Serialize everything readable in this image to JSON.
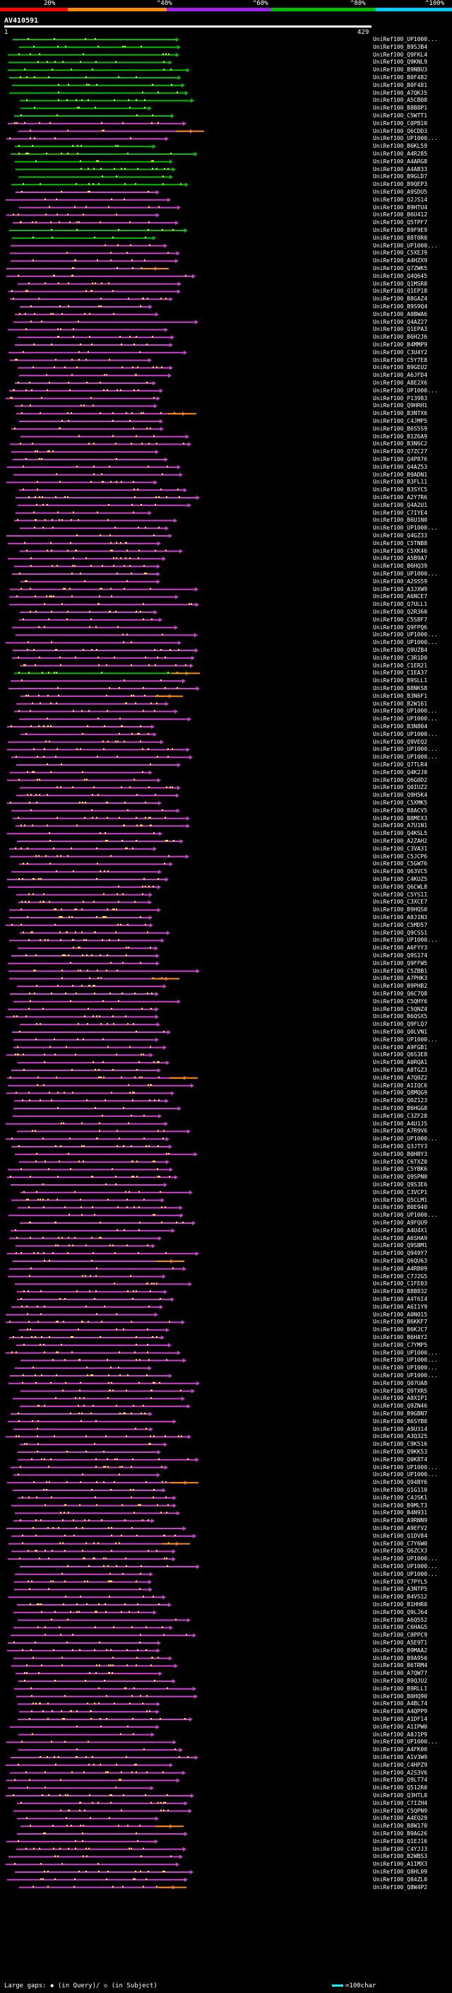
{
  "legend": {
    "labels": [
      "20%",
      "^40%",
      "^60%",
      "^80%",
      "^100%"
    ],
    "colors": [
      "#ff0000",
      "#ff8c00",
      "#a020f0",
      "#00c000",
      "#00d0ff"
    ]
  },
  "query": {
    "name": "AV410591",
    "start": "1",
    "end": "429"
  },
  "hit_colors": {
    "main": "#d040d0",
    "green": "#00c000",
    "orange": "#ff8c00",
    "cyan": "#00ffff",
    "dots": "#ffff00"
  },
  "hits": [
    "UniRef100_UP1000...",
    "UniRef100_B9SJB4",
    "UniRef100_Q9FKL4",
    "UniRef100_Q9KNL9",
    "UniRef100_B9NBU3",
    "UniRef100_B0F482",
    "UniRef100_B0F481",
    "UniRef100_A7QKJ5",
    "UniRef100_A5CB08",
    "UniRef100_B8B8P1",
    "UniRef100_C5WTT1",
    "UniRef100_C0PB10",
    "UniRef100_Q6CDD3",
    "UniRef100_UP1000...",
    "UniRef100_B6KL59",
    "UniRef100_A4R285",
    "UniRef100_A4ARG8",
    "UniRef100_A4AB33",
    "UniRef100_B9GLD7",
    "UniRef100_B9QEP3",
    "UniRef100_A9SDU5",
    "UniRef100_Q2JS14",
    "UniRef100_B9HTU4",
    "UniRef100_B6U412",
    "UniRef100_Q5TPF7",
    "UniRef100_B9F9E9",
    "UniRef100_B8T0R0",
    "UniRef100_UP1000...",
    "UniRef100_C5XEJ9",
    "UniRef100_A4HZX9",
    "UniRef100_Q7ZWK5",
    "UniRef100_Q4Q645",
    "UniRef100_Q1MSR8",
    "UniRef100_Q1EP18",
    "UniRef100_B8GAZ4",
    "UniRef100_B9S9Q4",
    "UniRef100_A0BWA6",
    "UniRef100_Q4AZ27",
    "UniRef100_Q1EPA3",
    "UniRef100_B6H2J6",
    "UniRef100_B4MMP9",
    "UniRef100_C3U4Y2",
    "UniRef100_C5Y7E8",
    "UniRef100_B9GEU2",
    "UniRef100_A6JFD4",
    "UniRef100_A8E2X6",
    "UniRef100_UP1000...",
    "UniRef100_P13983",
    "UniRef100_Q9HRH1",
    "UniRef100_B3NTX6",
    "UniRef100_C4JMP5",
    "UniRef100_B6S5S9",
    "UniRef100_B1Z6A9",
    "UniRef100_B3N6C2",
    "UniRef100_Q7ZC27",
    "UniRef100_Q4P876",
    "UniRef100_Q4AZ53",
    "UniRef100_B9ADN1",
    "UniRef100_B3FL11",
    "UniRef100_B3SYC5",
    "UniRef100_A2Y7R6",
    "UniRef100_Q4A2U1",
    "UniRef100_C7IYE4",
    "UniRef100_B6U1N0",
    "UniRef100_UP1000...",
    "UniRef100_Q4GZ33",
    "UniRef100_C5TNB8",
    "UniRef100_C5XK46",
    "UniRef100_A5B9A7",
    "UniRef100_B6HQ39",
    "UniRef100_UP1000...",
    "UniRef100_A2SS59",
    "UniRef100_A3JXW9",
    "UniRef100_A6NCE7",
    "UniRef100_Q7ULL1",
    "UniRef100_Q2R360",
    "UniRef100_C5S8F7",
    "UniRef100_Q9FPQ6",
    "UniRef100_UP1000...",
    "UniRef100_UP1000...",
    "UniRef100_Q9UZB4",
    "UniRef100_C3R1D0",
    "UniRef100_C1ER21",
    "UniRef100_C1EA37",
    "UniRef100_B9SLL1",
    "UniRef100_B8NKS8",
    "UniRef100_B3N6F1",
    "UniRef100_B2W161",
    "UniRef100_UP1000...",
    "UniRef100_UP1000...",
    "UniRef100_B3N804",
    "UniRef100_UP1000...",
    "UniRef100_Q9VEQ2",
    "UniRef100_UP1000...",
    "UniRef100_UP1000...",
    "UniRef100_Q7TLR4",
    "UniRef100_Q4K2J0",
    "UniRef100_Q6G0D2",
    "UniRef100_Q0IUZ2",
    "UniRef100_Q9H5K4",
    "UniRef100_C5XMK5",
    "UniRef100_B8ACV5",
    "UniRef100_B8MEX3",
    "UniRef100_A7U1N1",
    "UniRef100_Q4KSL5",
    "UniRef100_A2ZAH2",
    "UniRef100_C3VA31",
    "UniRef100_C5JCP6",
    "UniRef100_C5GW76",
    "UniRef100_Q63VC5",
    "UniRef100_C4KUZ5",
    "UniRef100_Q6CWL8",
    "UniRef100_C5YS11",
    "UniRef100_C3XCE7",
    "UniRef100_B9HQS0",
    "UniRef100_A8J1N3",
    "UniRef100_C5MD57",
    "UniRef100_Q9CSS1",
    "UniRef100_UP1000...",
    "UniRef100_A6FYY3",
    "UniRef100_Q9S174",
    "UniRef100_Q9FFW5",
    "UniRef100_C5ZBB1",
    "UniRef100_A7PHK3",
    "UniRef100_B9PHB2",
    "UniRef100_Q6C7Q8",
    "UniRef100_C5QHY6",
    "UniRef100_C5QNZ4",
    "UniRef100_B6QSX5",
    "UniRef100_Q9FLQ7",
    "UniRef100_Q0LVN1",
    "UniRef100_UP1000...",
    "UniRef100_A9FGB1",
    "UniRef100_Q6S3E8",
    "UniRef100_A0RQA1",
    "UniRef100_A8TGZ3",
    "UniRef100_A7Q0Z2",
    "UniRef100_A1IQC6",
    "UniRef100_Q8MQG9",
    "UniRef100_Q0Z123",
    "UniRef100_B6HGG8",
    "UniRef100_C3ZF28",
    "UniRef100_A4U1J5",
    "UniRef100_A7R9V6",
    "UniRef100_UP1000...",
    "UniRef100_Q3JTY3",
    "UniRef100_B0HBY3",
    "UniRef100_C6TXZ0",
    "UniRef100_C5YBK6",
    "UniRef100_Q9SPN0",
    "UniRef100_Q9S3E6",
    "UniRef100_C3VCP1",
    "UniRef100_Q5CLM1",
    "UniRef100_B0E940",
    "UniRef100_UP1000...",
    "UniRef100_A9FQU9",
    "UniRef100_A4U4X1",
    "UniRef100_A6SHA9",
    "UniRef100_Q9SBM1",
    "UniRef100_Q949Y7",
    "UniRef100_Q6QU63",
    "UniRef100_A4RB09",
    "UniRef100_C7J2G5",
    "UniRef100_C1FE03",
    "UniRef100_B8B832",
    "UniRef100_A4T6I4",
    "UniRef100_A6I1Y9",
    "UniRef100_A0N015",
    "UniRef100_B6KKF7",
    "UniRef100_B6KJC7",
    "UniRef100_B6HAY2",
    "UniRef100_C7YMP5",
    "UniRef100_UP1000...",
    "UniRef100_UP1000...",
    "UniRef100_UP1000...",
    "UniRef100_UP1000...",
    "UniRef100_Q07UA8",
    "UniRef100_Q9TXR5",
    "UniRef100_A8XIP1",
    "UniRef100_Q9ZN46",
    "UniRef100_B9GBN7",
    "UniRef100_B6SYB0",
    "UniRef100_A9U314",
    "UniRef100_A3Q325",
    "UniRef100_C9K516",
    "UniRef100_Q9KK53",
    "UniRef100_Q0K8T4",
    "UniRef100_UP1000...",
    "UniRef100_UP1000...",
    "UniRef100_Q94BY6",
    "UniRef100_Q1G110",
    "UniRef100_C4JSK1",
    "UniRef100_B9MLT3",
    "UniRef100_B4N931",
    "UniRef100_A9RNN9",
    "UniRef100_A9EFV2",
    "UniRef100_Q1DV84",
    "UniRef100_C7Y6W0",
    "UniRef100_Q6ZCX3",
    "UniRef100_UP1000...",
    "UniRef100_UP1000...",
    "UniRef100_UP1000...",
    "UniRef100_C7PYL5",
    "UniRef100_A3NTP5",
    "UniRef100_B4VS12",
    "UniRef100_B1HHR0",
    "UniRef100_Q9LJ64",
    "UniRef100_A6Q552",
    "UniRef100_C6HAG5",
    "UniRef100_C0PPC9",
    "UniRef100_A5E9T1",
    "UniRef100_B9MAA2",
    "UniRef100_B9A950",
    "UniRef100_B6TRM4",
    "UniRef100_A7QW77",
    "UniRef100_B9QJU2",
    "UniRef100_B9RLL1",
    "UniRef100_B0HQ90",
    "UniRef100_A4BL74",
    "UniRef100_A4QPP9",
    "UniRef100_A1DF14",
    "UniRef100_A1IPW0",
    "UniRef100_A8J1P9",
    "UniRef100_UP1000...",
    "UniRef100_A4FK00",
    "UniRef100_A1V3W9",
    "UniRef100_C4HPZ9",
    "UniRef100_A2S3V6",
    "UniRef100_Q9LT74",
    "UniRef100_Q512R0",
    "UniRef100_Q3HTL0",
    "UniRef100_C7IZH4",
    "UniRef100_C5QPN9",
    "UniRef100_A4EQ29",
    "UniRef100_B8W170",
    "UniRef100_B9AG26",
    "UniRef100_Q1EJ16",
    "UniRef100_C4YJJ3",
    "UniRef100_B2WBS3",
    "UniRef100_A1IMX3",
    "UniRef100_Q8HL09",
    "UniRef100_Q84ZL0",
    "UniRef100_Q8W4P2"
  ],
  "footer": {
    "gaps_text": "Large gaps: ◆ (in Query)/ ◇ (in Subject)",
    "scale_text": "=100char"
  }
}
